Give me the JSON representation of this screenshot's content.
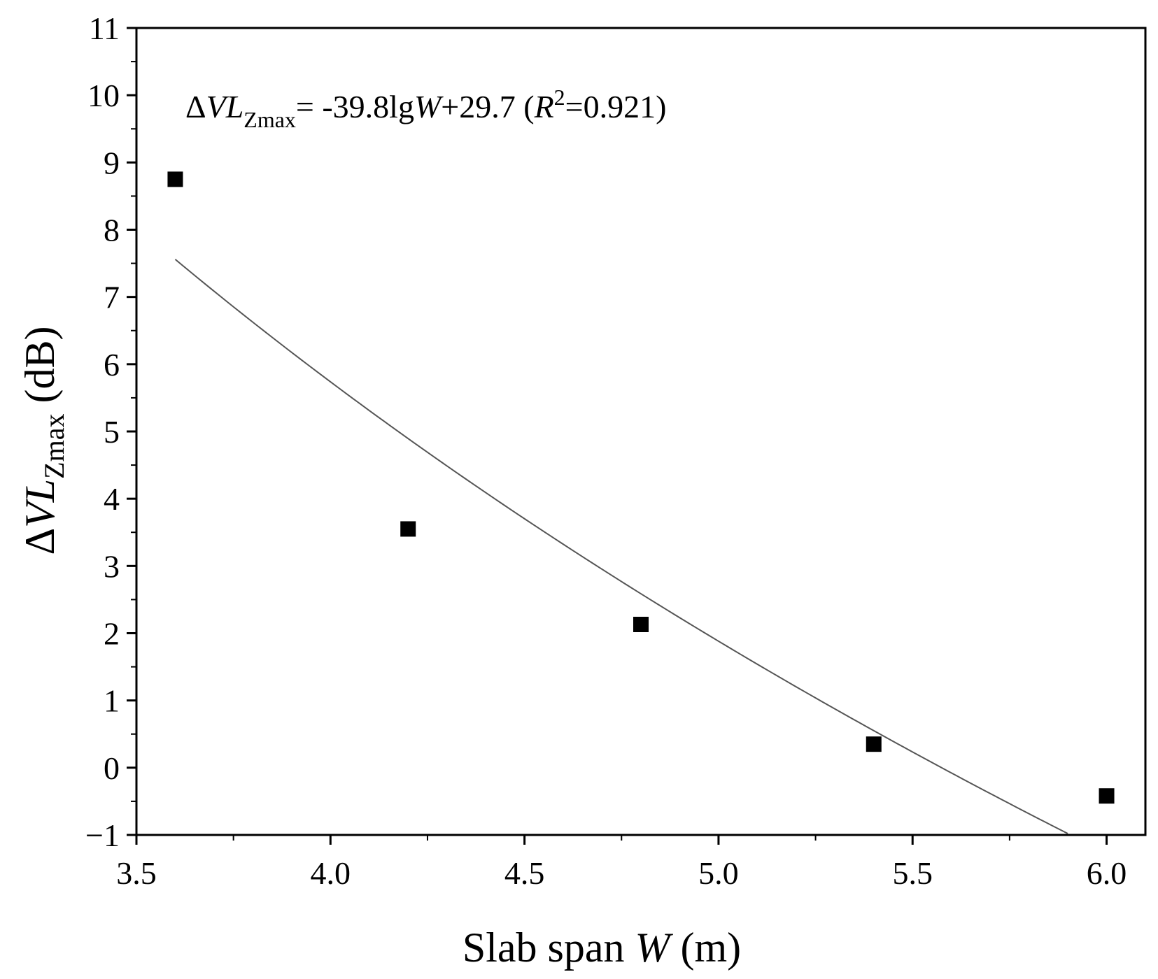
{
  "chart_data": {
    "type": "scatter",
    "xlabel": {
      "prefix": "Slab span ",
      "var": "W",
      "unit": " (m)"
    },
    "ylabel": {
      "delta": "Δ",
      "var": "VL",
      "sub": "Zmax",
      "unit": " (dB)"
    },
    "xlim": [
      3.5,
      6.1
    ],
    "ylim": [
      -1,
      11
    ],
    "x_ticks": [
      "3.5",
      "4.0",
      "4.5",
      "5.0",
      "5.5",
      "6.0"
    ],
    "y_ticks": [
      "−1",
      "0",
      "1",
      "2",
      "3",
      "4",
      "5",
      "6",
      "7",
      "8",
      "9",
      "10",
      "11"
    ],
    "points": [
      {
        "x": 3.6,
        "y": 8.75
      },
      {
        "x": 4.2,
        "y": 3.55
      },
      {
        "x": 4.8,
        "y": 2.13
      },
      {
        "x": 5.4,
        "y": 0.35
      },
      {
        "x": 6.0,
        "y": -0.42
      }
    ],
    "fit": {
      "a": -39.8,
      "b": 29.7,
      "x_range": [
        3.6,
        5.9
      ]
    },
    "annotation": {
      "delta": "Δ",
      "var": "VL",
      "sub": "Zmax",
      "eq": "= -39.8lg",
      "w": "W",
      "rest": "+29.7 (",
      "r": "R",
      "sup": "2",
      "tail": "=0.921)"
    },
    "marker_color": "#000000",
    "line_color": "#555555",
    "grid": false
  }
}
